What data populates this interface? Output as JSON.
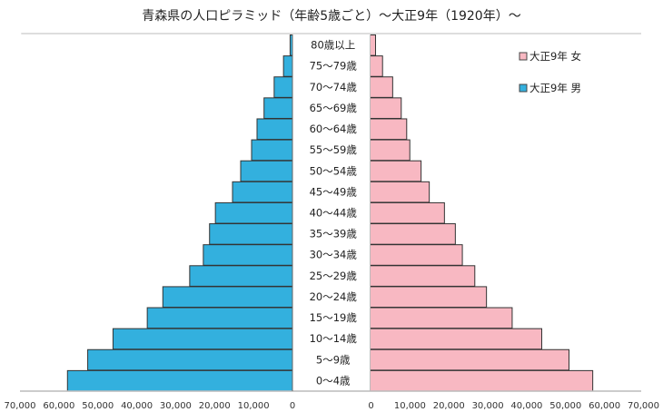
{
  "chart_data": {
    "type": "bar",
    "title": "青森県の人口ピラミッド（年齢5歳ごと）～大正9年（1920年）～",
    "orientation": "horizontal-pyramid",
    "categories": [
      "0～4歳",
      "5～9歳",
      "10～14歳",
      "15～19歳",
      "20～24歳",
      "25～29歳",
      "30～34歳",
      "35～39歳",
      "40～44歳",
      "45～49歳",
      "50～54歳",
      "55～59歳",
      "60～64歳",
      "65～69歳",
      "70～74歳",
      "75～79歳",
      "80歳以上"
    ],
    "series": [
      {
        "name": "大正9年 男",
        "side": "left",
        "color": "#33b0de",
        "values": [
          57800,
          52600,
          46100,
          37300,
          33300,
          26400,
          22900,
          21300,
          19800,
          15400,
          13300,
          10500,
          9100,
          7300,
          4700,
          2300,
          600
        ]
      },
      {
        "name": "大正9年 女",
        "side": "right",
        "color": "#f8b8c2",
        "values": [
          57200,
          51100,
          44100,
          36500,
          29900,
          26900,
          23700,
          21900,
          19100,
          15200,
          13100,
          10200,
          9400,
          8000,
          5800,
          3200,
          1400
        ]
      }
    ],
    "xlim": [
      0,
      70000
    ],
    "left_ticks": [
      "70,000",
      "60,000",
      "50,000",
      "40,000",
      "30,000",
      "20,000",
      "10,000",
      "0"
    ],
    "right_ticks": [
      "0",
      "10,000",
      "20,000",
      "30,000",
      "40,000",
      "50,000",
      "60,000",
      "70,000"
    ],
    "legend": {
      "position": "top-right",
      "order": [
        "大正9年 女",
        "大正9年 男"
      ]
    },
    "grid": false
  }
}
